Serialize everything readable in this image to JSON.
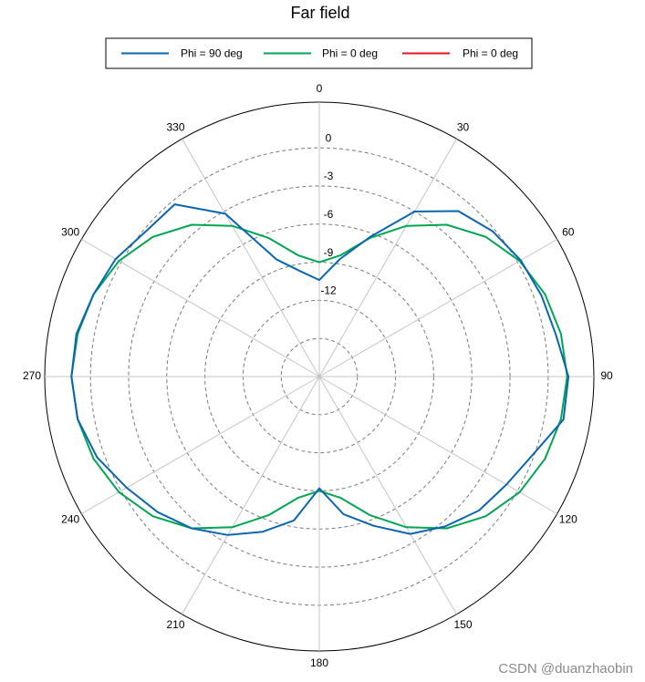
{
  "chart_data": {
    "type": "polar-line",
    "title": "Far field",
    "angle_unit": "deg",
    "angle_direction": "clockwise",
    "zero_location": "top",
    "angle_ticks": [
      0,
      30,
      60,
      90,
      120,
      150,
      180,
      210,
      240,
      270,
      300,
      330
    ],
    "angle_tick_labels": [
      "0",
      "30",
      "60",
      "90",
      "120",
      "150",
      "180",
      "210",
      "240",
      "270",
      "300",
      "330"
    ],
    "r_ticks": [
      0,
      -3,
      -6,
      -9,
      -12
    ],
    "r_tick_labels": [
      "0",
      "-3",
      "-6",
      "-9",
      "-12"
    ],
    "r_range": [
      -18,
      3.6
    ],
    "grid": true,
    "legend_position": "top",
    "series": [
      {
        "name": "Phi = 90 deg",
        "color": "#0a66b0",
        "theta": [
          0,
          10,
          20,
          30,
          40,
          50,
          60,
          70,
          80,
          90,
          100,
          110,
          120,
          130,
          140,
          150,
          160,
          170,
          180,
          190,
          200,
          210,
          220,
          230,
          240,
          250,
          260,
          270,
          280,
          290,
          300,
          310,
          320,
          330,
          340,
          350
        ],
        "r": [
          -10.4,
          -8.6,
          -6.3,
          -3.0,
          -1.0,
          -0.2,
          0.3,
          0.6,
          0.9,
          1.6,
          1.5,
          -0.1,
          -1.0,
          -1.6,
          -2.6,
          -3.7,
          -5.5,
          -7.0,
          -9.2,
          -6.5,
          -5.0,
          -3.6,
          -2.4,
          -1.4,
          -0.5,
          0.6,
          1.3,
          1.5,
          1.4,
          0.9,
          0.5,
          -0.2,
          -0.3,
          -3.2,
          -8.2,
          -9.6
        ]
      },
      {
        "name": "Phi = 0 deg",
        "color": "#00a651",
        "theta": [
          0,
          10,
          20,
          30,
          40,
          50,
          60,
          70,
          80,
          90,
          100,
          110,
          120,
          130,
          140,
          150,
          160,
          170,
          180,
          190,
          200,
          210,
          220,
          230,
          240,
          250,
          260,
          270,
          280,
          290,
          300,
          310,
          320,
          330,
          340,
          350
        ],
        "r": [
          -9.0,
          -8.3,
          -6.4,
          -4.3,
          -2.4,
          -0.9,
          0.2,
          0.9,
          1.3,
          1.5,
          1.3,
          0.9,
          0.2,
          -0.9,
          -2.4,
          -4.3,
          -6.4,
          -8.3,
          -9.0,
          -8.3,
          -6.4,
          -4.3,
          -2.4,
          -0.9,
          0.2,
          0.9,
          1.3,
          1.5,
          1.3,
          0.9,
          0.2,
          -0.9,
          -2.4,
          -4.3,
          -6.4,
          -8.3
        ]
      },
      {
        "name": "Phi = 0 deg",
        "color": "#e8141b",
        "theta": [],
        "r": []
      }
    ]
  },
  "watermark": "CSDN @duanzhaobin"
}
